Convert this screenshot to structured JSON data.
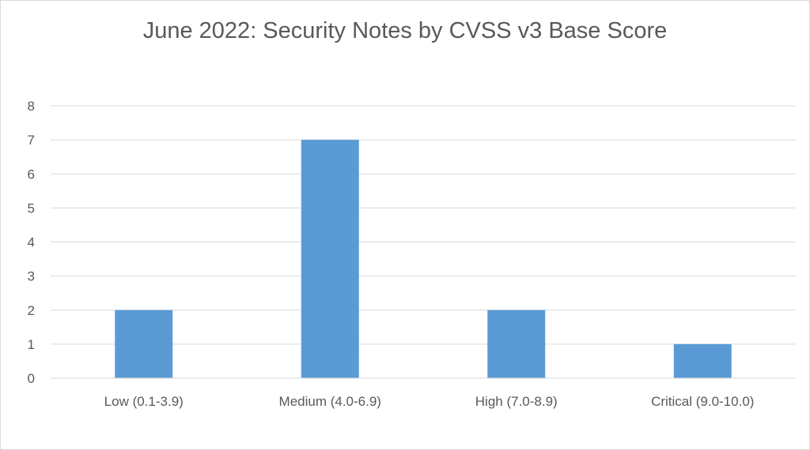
{
  "chart_data": {
    "type": "bar",
    "title": "June 2022: Security Notes by CVSS v3 Base Score",
    "categories": [
      "Low (0.1-3.9)",
      "Medium (4.0-6.9)",
      "High (7.0-8.9)",
      "Critical (9.0-10.0)"
    ],
    "values": [
      2,
      7,
      2,
      1
    ],
    "yticks": [
      "0",
      "1",
      "2",
      "3",
      "4",
      "5",
      "6",
      "7",
      "8"
    ],
    "ylim": [
      0,
      8
    ],
    "grid": true,
    "legend": "none",
    "bar_color": "#5b9bd5",
    "grid_color": "#d9d9d9",
    "text_color": "#595959"
  }
}
